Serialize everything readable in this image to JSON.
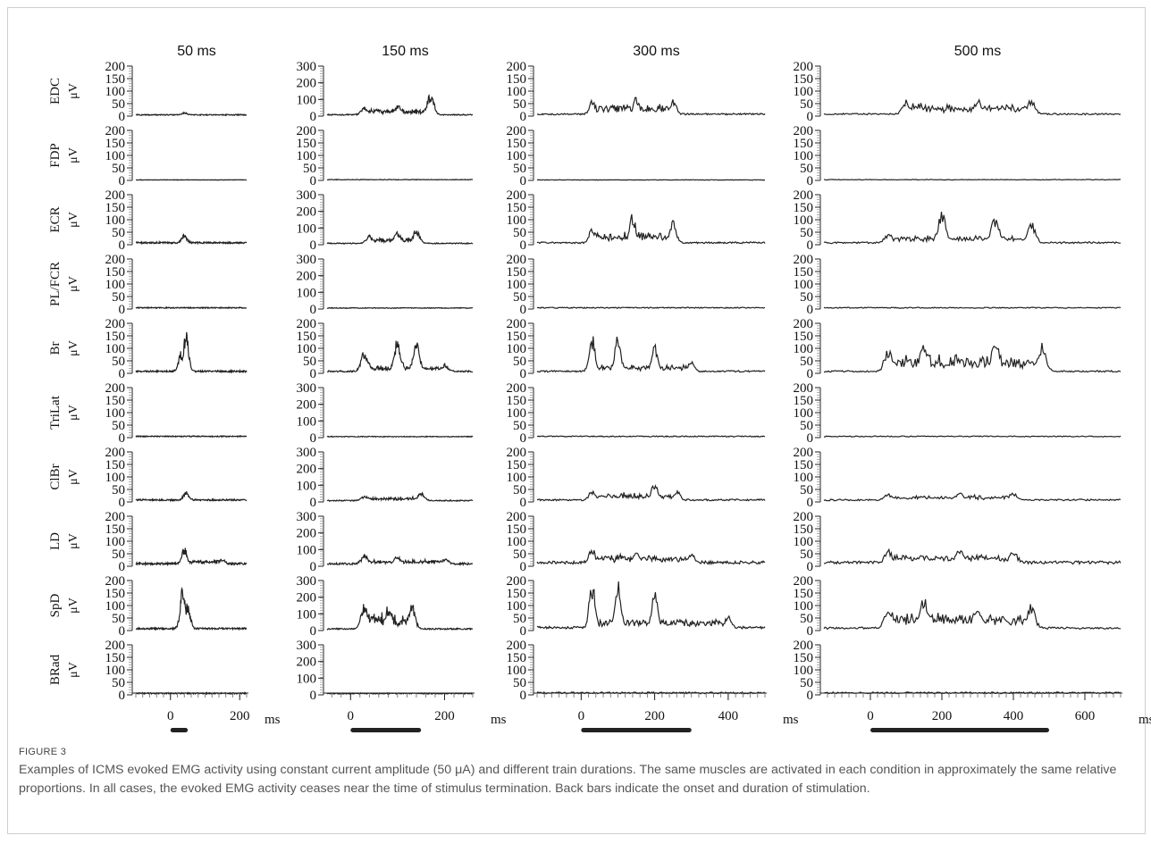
{
  "figure": {
    "label": "FIGURE 3",
    "caption": "Examples of ICMS evoked EMG activity using constant current amplitude (50 μA) and different train durations. The same muscles are activated in each condition in approximately the same relative proportions. In all cases, the evoked EMG activity ceases near the time of stimulus termination. Back bars indicate the onset and duration of stimulation."
  },
  "chart_data": {
    "type": "line",
    "y_unit": "μV",
    "x_unit": "ms",
    "line_color": "#222222",
    "muscles": [
      "EDC",
      "FDP",
      "ECR",
      "PL/FCR",
      "Br",
      "TriLat",
      "ClBr",
      "LD",
      "SpD",
      "BRad"
    ],
    "columns": [
      {
        "title": "50 ms",
        "stim_duration_ms": 50,
        "xlim": [
          -100,
          220
        ],
        "x_ticks": [
          "0",
          "200"
        ],
        "x_tick_values": [
          0,
          200
        ],
        "ylims": [
          200,
          200,
          200,
          200,
          200,
          200,
          200,
          200,
          200,
          200
        ],
        "y_ticks": [
          [
            "200",
            "150",
            "100",
            "50",
            "0"
          ],
          [
            "200",
            "150",
            "100",
            "50",
            "0"
          ],
          [
            "200",
            "150",
            "100",
            "50",
            "0"
          ],
          [
            "200",
            "150",
            "100",
            "50",
            "0"
          ],
          [
            "200",
            "150",
            "100",
            "50",
            "0"
          ],
          [
            "200",
            "150",
            "100",
            "50",
            "0"
          ],
          [
            "200",
            "150",
            "100",
            "50",
            "0"
          ],
          [
            "200",
            "150",
            "100",
            "50",
            "0"
          ],
          [
            "200",
            "150",
            "100",
            "50",
            "0"
          ],
          [
            "200",
            "150",
            "100",
            "50",
            "0"
          ]
        ],
        "series": [
          {
            "name": "EDC",
            "baseline": 5,
            "peaks": [
              [
                40,
                10
              ]
            ]
          },
          {
            "name": "FDP",
            "baseline": 2,
            "peaks": []
          },
          {
            "name": "ECR",
            "baseline": 8,
            "peaks": [
              [
                40,
                35
              ]
            ]
          },
          {
            "name": "PL/FCR",
            "baseline": 5,
            "peaks": []
          },
          {
            "name": "Br",
            "baseline": 8,
            "peaks": [
              [
                30,
                80
              ],
              [
                45,
                165
              ]
            ]
          },
          {
            "name": "TriLat",
            "baseline": 5,
            "peaks": []
          },
          {
            "name": "ClBr",
            "baseline": 8,
            "peaks": [
              [
                45,
                35
              ]
            ]
          },
          {
            "name": "LD",
            "baseline": 10,
            "peaks": [
              [
                40,
                70
              ],
              [
                150,
                20
              ]
            ]
          },
          {
            "name": "SpD",
            "baseline": 8,
            "peaks": [
              [
                35,
                175
              ],
              [
                50,
                110
              ]
            ]
          },
          {
            "name": "BRad",
            "baseline": 6,
            "peaks": []
          }
        ]
      },
      {
        "title": "150 ms",
        "stim_duration_ms": 150,
        "xlim": [
          -50,
          260
        ],
        "x_ticks": [
          "0",
          "200"
        ],
        "x_tick_values": [
          0,
          200
        ],
        "ylims": [
          300,
          200,
          300,
          300,
          200,
          300,
          300,
          300,
          300,
          300
        ],
        "y_ticks": [
          [
            "300",
            "200",
            "100",
            "0"
          ],
          [
            "200",
            "150",
            "100",
            "50",
            "0"
          ],
          [
            "300",
            "200",
            "100",
            "0"
          ],
          [
            "300",
            "200",
            "100",
            "0"
          ],
          [
            "200",
            "150",
            "100",
            "50",
            "0"
          ],
          [
            "300",
            "200",
            "100",
            "0"
          ],
          [
            "300",
            "200",
            "100",
            "0"
          ],
          [
            "300",
            "200",
            "100",
            "0"
          ],
          [
            "300",
            "200",
            "100",
            "0"
          ],
          [
            "300",
            "200",
            "100",
            "0"
          ]
        ],
        "series": [
          {
            "name": "EDC",
            "baseline": 8,
            "peaks": [
              [
                30,
                50
              ],
              [
                100,
                60
              ],
              [
                170,
                140
              ]
            ]
          },
          {
            "name": "FDP",
            "baseline": 3,
            "peaks": []
          },
          {
            "name": "ECR",
            "baseline": 8,
            "peaks": [
              [
                40,
                50
              ],
              [
                100,
                70
              ],
              [
                140,
                85
              ]
            ]
          },
          {
            "name": "PL/FCR",
            "baseline": 6,
            "peaks": []
          },
          {
            "name": "Br",
            "baseline": 8,
            "peaks": [
              [
                30,
                90
              ],
              [
                100,
                140
              ],
              [
                140,
                120
              ],
              [
                200,
                30
              ]
            ]
          },
          {
            "name": "TriLat",
            "baseline": 6,
            "peaks": []
          },
          {
            "name": "ClBr",
            "baseline": 8,
            "peaks": [
              [
                30,
                30
              ],
              [
                150,
                50
              ]
            ]
          },
          {
            "name": "LD",
            "baseline": 15,
            "peaks": [
              [
                30,
                55
              ],
              [
                100,
                45
              ],
              [
                200,
                30
              ]
            ]
          },
          {
            "name": "SpD",
            "baseline": 10,
            "peaks": [
              [
                30,
                170
              ],
              [
                80,
                140
              ],
              [
                130,
                160
              ]
            ]
          },
          {
            "name": "BRad",
            "baseline": 8,
            "peaks": []
          }
        ]
      },
      {
        "title": "300 ms",
        "stim_duration_ms": 300,
        "xlim": [
          -120,
          500
        ],
        "x_ticks": [
          "0",
          "200",
          "400"
        ],
        "x_tick_values": [
          0,
          200,
          400
        ],
        "ylims": [
          200,
          200,
          200,
          200,
          200,
          200,
          200,
          200,
          200,
          200
        ],
        "y_ticks": [
          [
            "200",
            "150",
            "100",
            "50",
            "0"
          ],
          [
            "200",
            "150",
            "100",
            "50",
            "0"
          ],
          [
            "200",
            "150",
            "100",
            "50",
            "0"
          ],
          [
            "200",
            "150",
            "100",
            "50",
            "0"
          ],
          [
            "200",
            "150",
            "100",
            "50",
            "0"
          ],
          [
            "200",
            "150",
            "100",
            "50",
            "0"
          ],
          [
            "200",
            "150",
            "100",
            "50",
            "0"
          ],
          [
            "200",
            "150",
            "100",
            "50",
            "0"
          ],
          [
            "200",
            "150",
            "100",
            "50",
            "0"
          ],
          [
            "200",
            "150",
            "100",
            "50",
            "0"
          ]
        ],
        "series": [
          {
            "name": "EDC",
            "baseline": 8,
            "peaks": [
              [
                30,
                60
              ],
              [
                150,
                75
              ],
              [
                250,
                60
              ]
            ]
          },
          {
            "name": "FDP",
            "baseline": 2,
            "peaks": []
          },
          {
            "name": "ECR",
            "baseline": 8,
            "peaks": [
              [
                30,
                65
              ],
              [
                140,
                120
              ],
              [
                250,
                100
              ]
            ]
          },
          {
            "name": "PL/FCR",
            "baseline": 5,
            "peaks": []
          },
          {
            "name": "Br",
            "baseline": 8,
            "peaks": [
              [
                30,
                150
              ],
              [
                100,
                160
              ],
              [
                200,
                110
              ],
              [
                300,
                40
              ]
            ]
          },
          {
            "name": "TriLat",
            "baseline": 5,
            "peaks": []
          },
          {
            "name": "ClBr",
            "baseline": 8,
            "peaks": [
              [
                30,
                40
              ],
              [
                200,
                80
              ],
              [
                260,
                45
              ]
            ]
          },
          {
            "name": "LD",
            "baseline": 15,
            "peaks": [
              [
                30,
                65
              ],
              [
                150,
                45
              ],
              [
                300,
                40
              ]
            ]
          },
          {
            "name": "SpD",
            "baseline": 12,
            "peaks": [
              [
                30,
                200
              ],
              [
                100,
                195
              ],
              [
                200,
                160
              ],
              [
                400,
                50
              ]
            ]
          },
          {
            "name": "BRad",
            "baseline": 8,
            "peaks": []
          }
        ]
      },
      {
        "title": "500 ms",
        "stim_duration_ms": 500,
        "xlim": [
          -130,
          700
        ],
        "x_ticks": [
          "0",
          "200",
          "400",
          "600"
        ],
        "x_tick_values": [
          0,
          200,
          400,
          600
        ],
        "ylims": [
          200,
          200,
          200,
          200,
          200,
          200,
          200,
          200,
          200,
          200
        ],
        "y_ticks": [
          [
            "200",
            "150",
            "100",
            "50",
            "0"
          ],
          [
            "200",
            "150",
            "100",
            "50",
            "0"
          ],
          [
            "200",
            "150",
            "100",
            "50",
            "0"
          ],
          [
            "200",
            "150",
            "100",
            "50",
            "0"
          ],
          [
            "200",
            "150",
            "100",
            "50",
            "0"
          ],
          [
            "200",
            "150",
            "100",
            "50",
            "0"
          ],
          [
            "200",
            "150",
            "100",
            "50",
            "0"
          ],
          [
            "200",
            "150",
            "100",
            "50",
            "0"
          ],
          [
            "200",
            "150",
            "100",
            "50",
            "0"
          ],
          [
            "200",
            "150",
            "100",
            "50",
            "0"
          ]
        ],
        "series": [
          {
            "name": "EDC",
            "baseline": 8,
            "peaks": [
              [
                100,
                60
              ],
              [
                300,
                65
              ],
              [
                450,
                60
              ]
            ]
          },
          {
            "name": "FDP",
            "baseline": 3,
            "peaks": []
          },
          {
            "name": "ECR",
            "baseline": 8,
            "peaks": [
              [
                50,
                40
              ],
              [
                200,
                140
              ],
              [
                350,
                120
              ],
              [
                450,
                90
              ]
            ]
          },
          {
            "name": "PL/FCR",
            "baseline": 5,
            "peaks": []
          },
          {
            "name": "Br",
            "baseline": 8,
            "peaks": [
              [
                50,
                100
              ],
              [
                150,
                120
              ],
              [
                350,
                130
              ],
              [
                480,
                120
              ]
            ]
          },
          {
            "name": "TriLat",
            "baseline": 5,
            "peaks": []
          },
          {
            "name": "ClBr",
            "baseline": 8,
            "peaks": [
              [
                50,
                25
              ],
              [
                250,
                35
              ],
              [
                400,
                30
              ]
            ]
          },
          {
            "name": "LD",
            "baseline": 15,
            "peaks": [
              [
                50,
                50
              ],
              [
                250,
                55
              ],
              [
                400,
                45
              ]
            ]
          },
          {
            "name": "SpD",
            "baseline": 10,
            "peaks": [
              [
                50,
                90
              ],
              [
                150,
                130
              ],
              [
                300,
                110
              ],
              [
                450,
                100
              ]
            ]
          },
          {
            "name": "BRad",
            "baseline": 8,
            "peaks": []
          }
        ]
      }
    ]
  }
}
